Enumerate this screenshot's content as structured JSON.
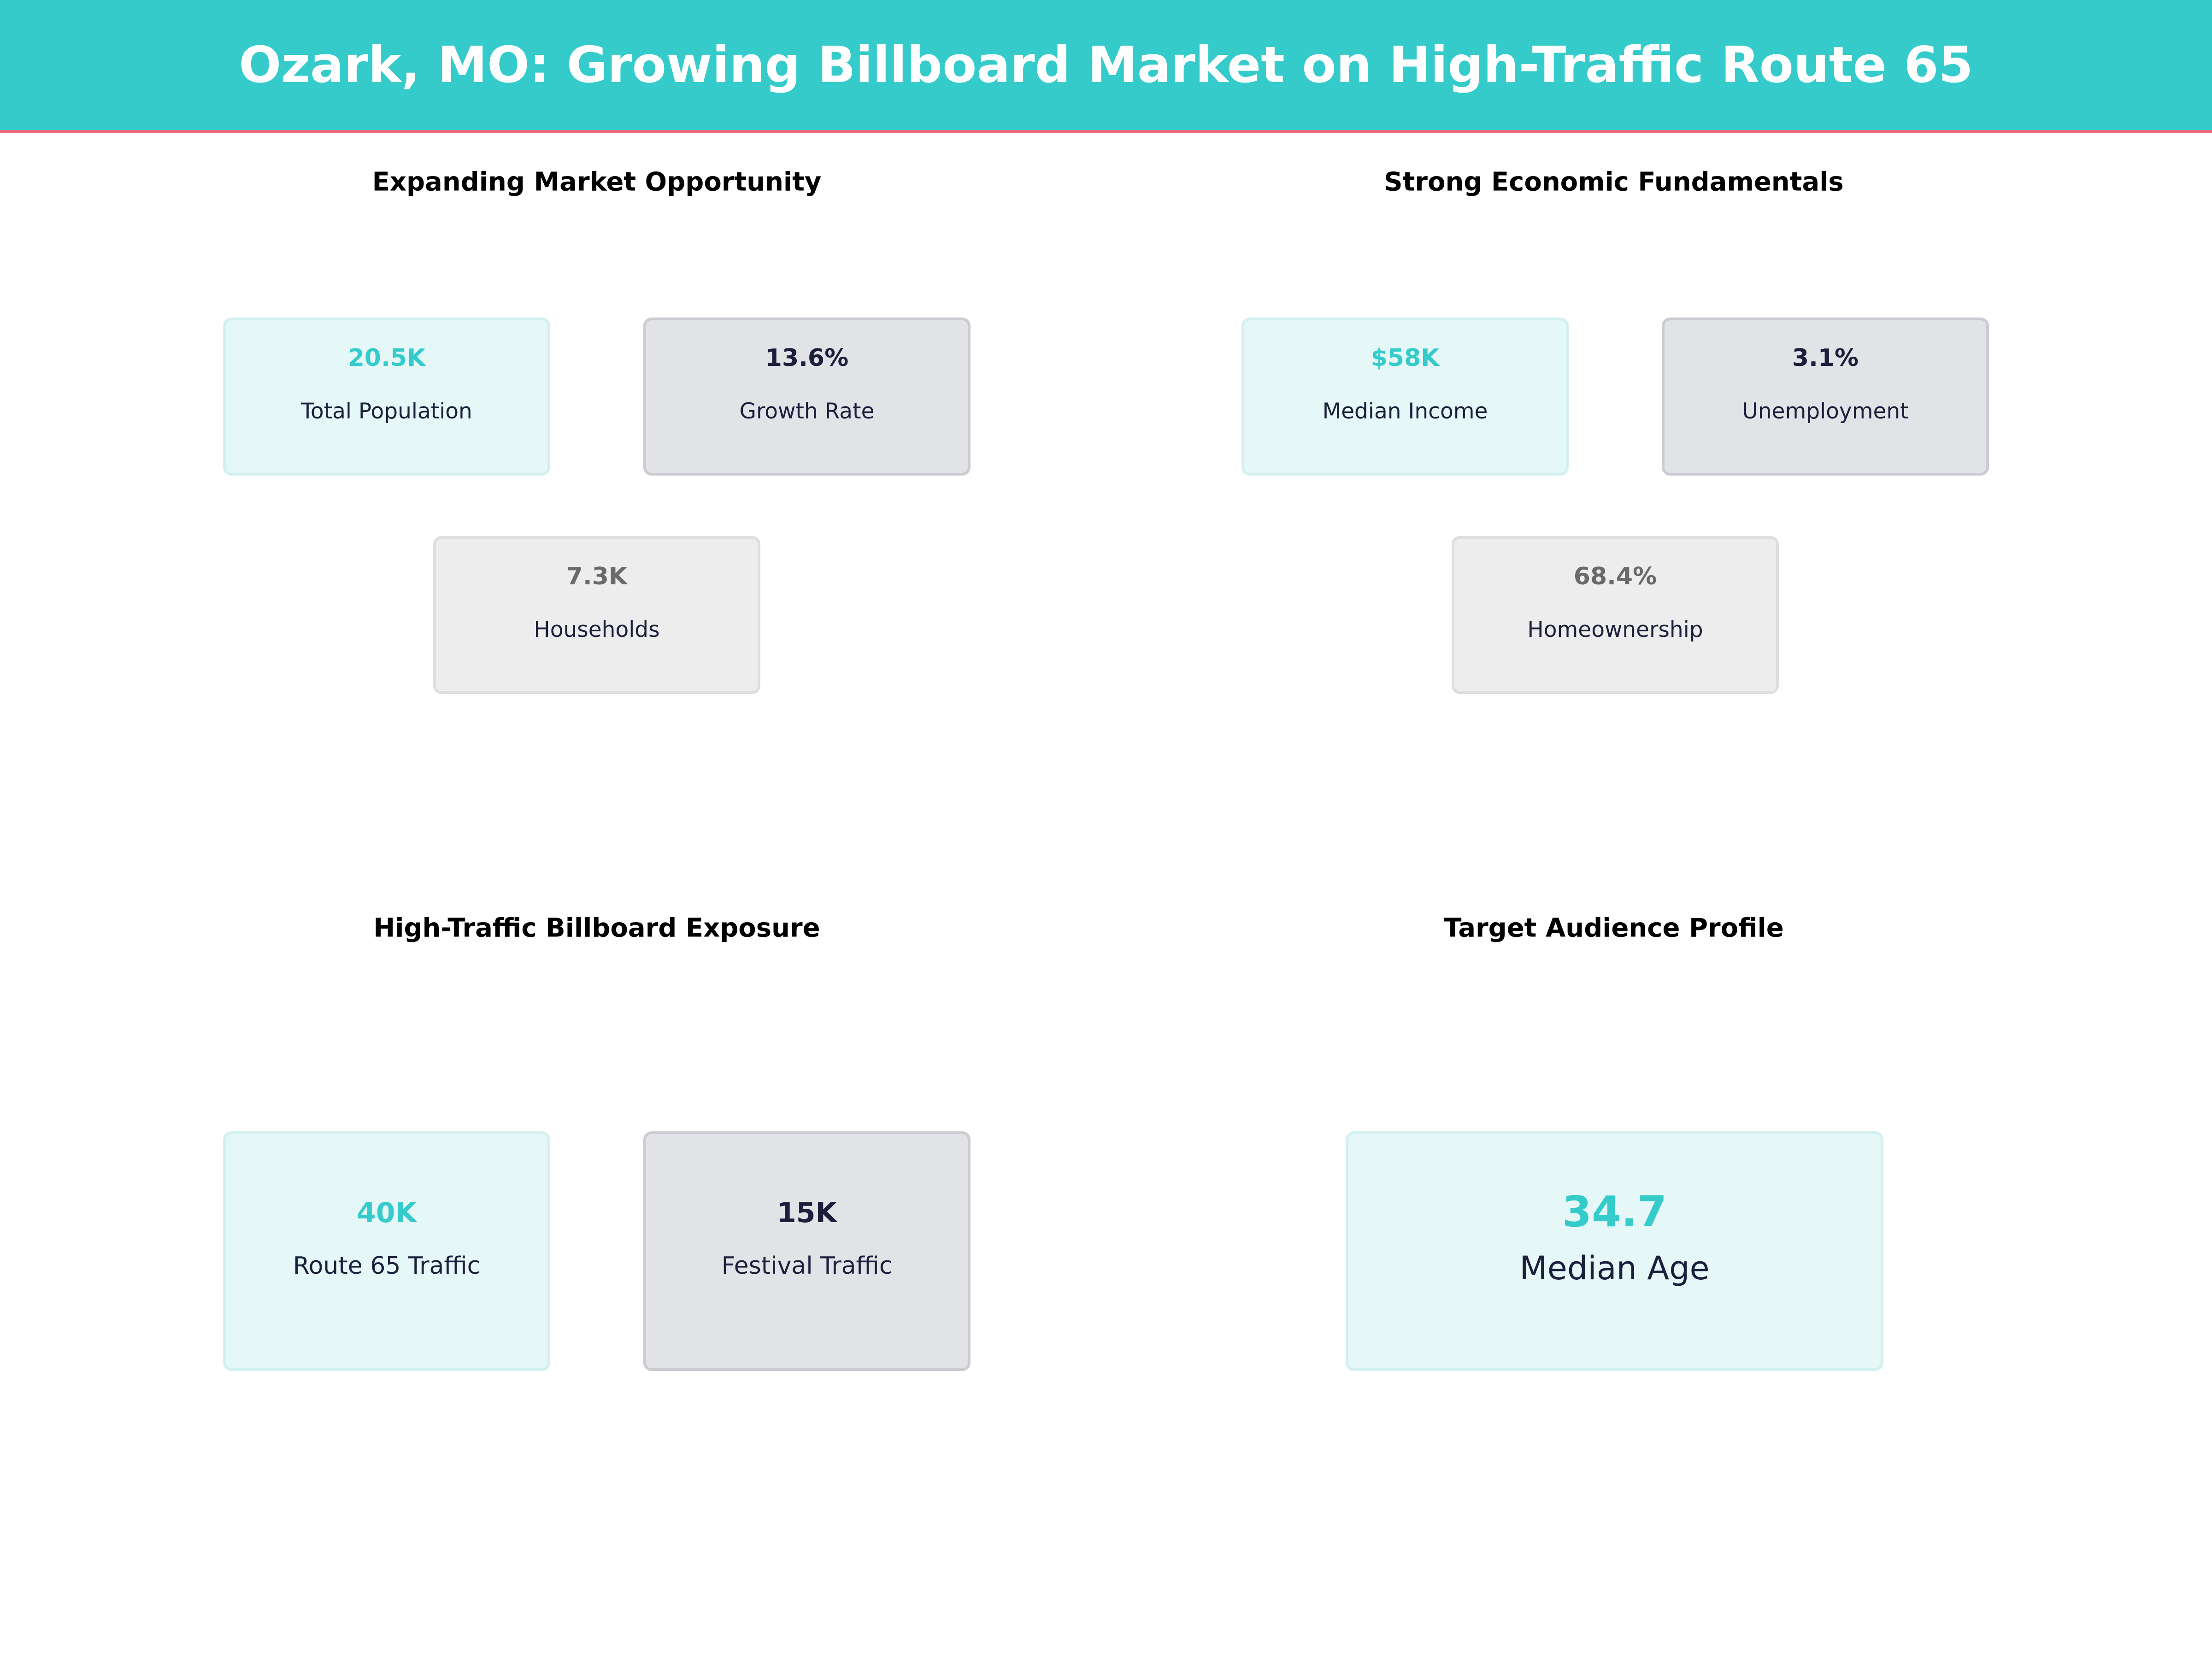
{
  "header": {
    "title": "Ozark, MO: Growing Billboard Market on High-Traffic Route 65"
  },
  "colors": {
    "accent": "#35cbcb",
    "header_underline": "#e8697a",
    "dark": "#1b1f3b"
  },
  "sections": [
    {
      "title": "Expanding Market Opportunity",
      "metrics": [
        {
          "value": "20.5K",
          "label": "Total Population"
        },
        {
          "value": "13.6%",
          "label": "Growth Rate"
        },
        {
          "value": "7.3K",
          "label": "Households"
        }
      ]
    },
    {
      "title": "Strong Economic Fundamentals",
      "metrics": [
        {
          "value": "$58K",
          "label": "Median Income"
        },
        {
          "value": "3.1%",
          "label": "Unemployment"
        },
        {
          "value": "68.4%",
          "label": "Homeownership"
        }
      ]
    },
    {
      "title": "High-Traffic Billboard Exposure",
      "metrics": [
        {
          "value": "40K",
          "label": "Route 65 Traffic"
        },
        {
          "value": "15K",
          "label": "Festival Traffic"
        }
      ]
    },
    {
      "title": "Target Audience Profile",
      "metrics": [
        {
          "value": "34.7",
          "label": "Median Age"
        }
      ]
    }
  ]
}
